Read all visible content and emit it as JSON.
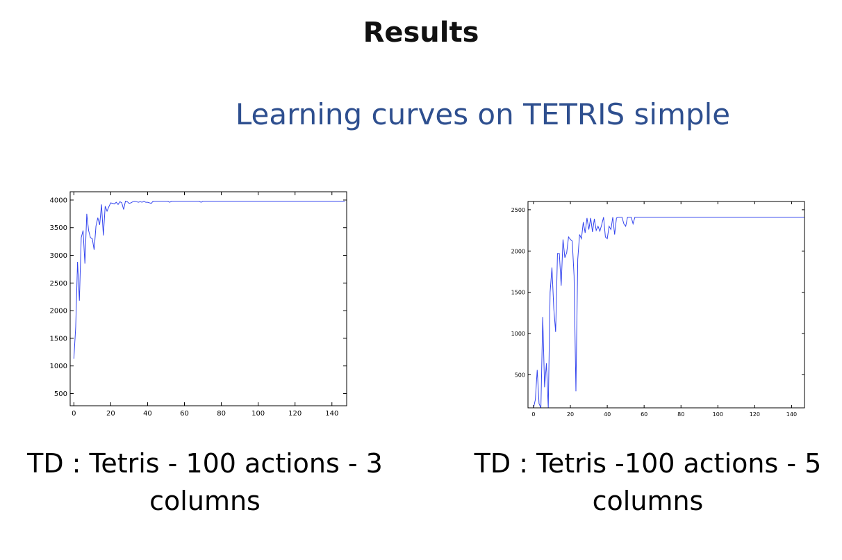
{
  "slide": {
    "title": "Results",
    "subtitle": "Learning curves on TETRIS simple"
  },
  "captions": {
    "left": "TD : Tetris - 100 actions - 3 columns",
    "right": "TD : Tetris -100 actions - 5 columns"
  },
  "line_color": "#3344ee",
  "chart_data": [
    {
      "type": "line",
      "title": "",
      "xlabel": "",
      "ylabel": "",
      "xlim": [
        -2,
        148
      ],
      "ylim": [
        280,
        4150
      ],
      "xticks": [
        0,
        20,
        40,
        60,
        80,
        100,
        120,
        140
      ],
      "yticks": [
        500,
        1000,
        1500,
        2000,
        2500,
        3000,
        3500,
        4000
      ],
      "grid": false,
      "x": [
        0,
        1,
        2,
        3,
        4,
        5,
        6,
        7,
        8,
        9,
        10,
        11,
        12,
        13,
        14,
        15,
        16,
        17,
        18,
        19,
        20,
        21,
        22,
        23,
        24,
        25,
        26,
        27,
        28,
        29,
        30,
        31,
        32,
        33,
        34,
        35,
        36,
        37,
        38,
        39,
        40,
        41,
        42,
        43,
        44,
        45,
        46,
        47,
        48,
        49,
        50,
        51,
        52,
        53,
        54,
        55,
        56,
        57,
        58,
        59,
        60,
        61,
        62,
        63,
        64,
        65,
        66,
        67,
        68,
        69,
        70,
        71,
        72,
        73,
        74,
        75,
        76,
        77,
        78,
        79,
        80,
        81,
        82,
        83,
        84,
        85,
        86,
        87,
        88,
        89,
        90,
        91,
        92,
        93,
        94,
        95,
        96,
        97,
        98,
        99,
        100,
        101,
        102,
        103,
        104,
        105,
        106,
        107,
        108,
        109,
        110,
        111,
        112,
        113,
        114,
        115,
        116,
        117,
        118,
        119,
        120,
        121,
        122,
        123,
        124,
        125,
        126,
        127,
        128,
        129,
        130,
        131,
        132,
        133,
        134,
        135,
        136,
        137,
        138,
        139,
        140,
        141,
        142,
        143,
        144,
        145,
        146,
        147
      ],
      "series": [
        {
          "values": [
            1130,
            1700,
            2880,
            2180,
            3320,
            3450,
            2850,
            3750,
            3450,
            3320,
            3300,
            3100,
            3530,
            3680,
            3550,
            3920,
            3360,
            3890,
            3800,
            3880,
            3950,
            3940,
            3930,
            3960,
            3920,
            3970,
            3950,
            3830,
            3980,
            3970,
            3940,
            3950,
            3970,
            3980,
            3970,
            3960,
            3970,
            3960,
            3980,
            3960,
            3960,
            3950,
            3940,
            3980,
            3980,
            3980,
            3980,
            3980,
            3980,
            3980,
            3980,
            3980,
            3960,
            3980,
            3980,
            3980,
            3980,
            3980,
            3980,
            3980,
            3980,
            3980,
            3980,
            3980,
            3980,
            3980,
            3980,
            3980,
            3980,
            3960,
            3980,
            3980,
            3980,
            3980,
            3980,
            3980,
            3980,
            3980,
            3980,
            3980,
            3980,
            3980,
            3980,
            3980,
            3980,
            3980,
            3980,
            3980,
            3980,
            3980,
            3980,
            3980,
            3980,
            3980,
            3980,
            3980,
            3980,
            3980,
            3980,
            3980,
            3980,
            3980,
            3980,
            3980,
            3980,
            3980,
            3980,
            3980,
            3980,
            3980,
            3980,
            3980,
            3980,
            3980,
            3980,
            3980,
            3980,
            3980,
            3980,
            3980,
            3980,
            3980,
            3980,
            3980,
            3980,
            3980,
            3980,
            3980,
            3980,
            3980,
            3980,
            3980,
            3980,
            3980,
            3980,
            3980,
            3980,
            3980,
            3980,
            3980,
            3980,
            3980,
            3980,
            3980,
            3980,
            3980,
            3980,
            3980
          ]
        }
      ]
    },
    {
      "type": "line",
      "title": "",
      "xlabel": "",
      "ylabel": "",
      "xlim": [
        -3,
        147
      ],
      "ylim": [
        100,
        2600
      ],
      "xticks": [
        0,
        20,
        40,
        60,
        80,
        100,
        120,
        140
      ],
      "yticks": [
        500,
        1000,
        1500,
        2000,
        2500
      ],
      "grid": false,
      "x": [
        0,
        1,
        2,
        3,
        4,
        5,
        6,
        7,
        8,
        9,
        10,
        11,
        12,
        13,
        14,
        15,
        16,
        17,
        18,
        19,
        20,
        21,
        22,
        23,
        24,
        25,
        26,
        27,
        28,
        29,
        30,
        31,
        32,
        33,
        34,
        35,
        36,
        37,
        38,
        39,
        40,
        41,
        42,
        43,
        44,
        45,
        46,
        47,
        48,
        49,
        50,
        51,
        52,
        53,
        54,
        55,
        56,
        57,
        58,
        59,
        60,
        61,
        62,
        63,
        64,
        65,
        66,
        67,
        68,
        69,
        70,
        71,
        72,
        73,
        74,
        75,
        76,
        77,
        78,
        79,
        80,
        81,
        82,
        83,
        84,
        85,
        86,
        87,
        88,
        89,
        90,
        91,
        92,
        93,
        94,
        95,
        96,
        97,
        98,
        99,
        100,
        101,
        102,
        103,
        104,
        105,
        106,
        107,
        108,
        109,
        110,
        111,
        112,
        113,
        114,
        115,
        116,
        117,
        118,
        119,
        120,
        121,
        122,
        123,
        124,
        125,
        126,
        127,
        128,
        129,
        130,
        131,
        132,
        133,
        134,
        135,
        136,
        137,
        138,
        139,
        140,
        141,
        142,
        143,
        144,
        145,
        146,
        147
      ],
      "series": [
        {
          "values": [
            100,
            200,
            560,
            150,
            100,
            1200,
            350,
            640,
            100,
            1500,
            1800,
            1300,
            1020,
            1970,
            1970,
            1580,
            2140,
            1920,
            1980,
            2170,
            2140,
            2120,
            1700,
            300,
            1900,
            2200,
            2150,
            2350,
            2220,
            2400,
            2260,
            2400,
            2230,
            2390,
            2250,
            2300,
            2240,
            2320,
            2410,
            2170,
            2150,
            2300,
            2260,
            2410,
            2200,
            2400,
            2410,
            2410,
            2410,
            2330,
            2300,
            2410,
            2410,
            2410,
            2330,
            2410,
            2410,
            2410,
            2410,
            2410,
            2410,
            2410,
            2410,
            2410,
            2410,
            2410,
            2410,
            2410,
            2410,
            2410,
            2410,
            2410,
            2410,
            2410,
            2410,
            2410,
            2410,
            2410,
            2410,
            2410,
            2410,
            2410,
            2410,
            2410,
            2410,
            2410,
            2410,
            2410,
            2410,
            2410,
            2410,
            2410,
            2410,
            2410,
            2410,
            2410,
            2410,
            2410,
            2410,
            2410,
            2410,
            2410,
            2410,
            2410,
            2410,
            2410,
            2410,
            2410,
            2410,
            2410,
            2410,
            2410,
            2410,
            2410,
            2410,
            2410,
            2410,
            2410,
            2410,
            2410,
            2410,
            2410,
            2410,
            2410,
            2410,
            2410,
            2410,
            2410,
            2410,
            2410,
            2410,
            2410,
            2410,
            2410,
            2410,
            2410,
            2410,
            2410,
            2410,
            2410,
            2410,
            2410,
            2410,
            2410,
            2410,
            2410,
            2410,
            2410
          ]
        }
      ]
    }
  ]
}
